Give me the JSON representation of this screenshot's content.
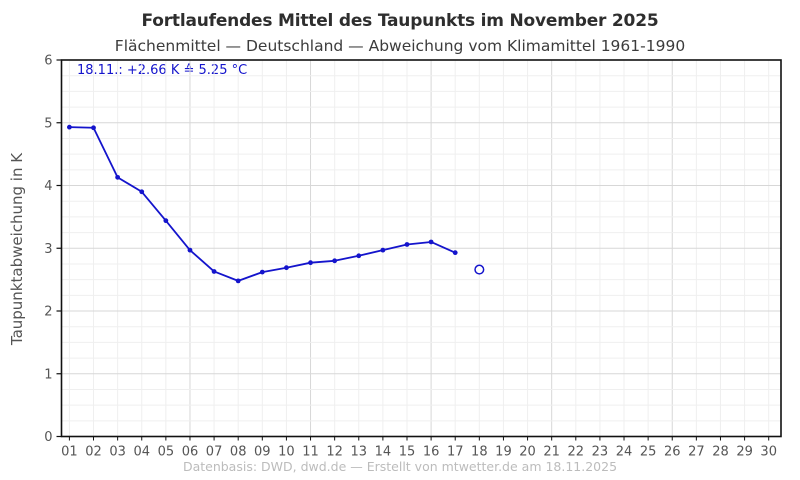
{
  "page": {
    "title": "Fortlaufendes Mittel des Taupunkts im November 2025",
    "subtitle": "Flächenmittel — Deutschland — Abweichung vom Klimamittel 1961-1990",
    "footer": "Datenbasis: DWD, dwd.de — Erstellt von mtwetter.de am 18.11.2025"
  },
  "chart_data": {
    "type": "line",
    "title": "Fortlaufendes Mittel des Taupunkts im November 2025",
    "subtitle": "Flächenmittel — Deutschland — Abweichung vom Klimamittel 1961-1990",
    "ylabel": "Taupunktabweichung in K",
    "xlabel": "",
    "annotation": "18.11.: +2.66 K ≙ 5.25 °C",
    "categories": [
      "01",
      "02",
      "03",
      "04",
      "05",
      "06",
      "07",
      "08",
      "09",
      "10",
      "11",
      "12",
      "13",
      "14",
      "15",
      "16",
      "17",
      "18",
      "19",
      "20",
      "21",
      "22",
      "23",
      "24",
      "25",
      "26",
      "27",
      "28",
      "29",
      "30"
    ],
    "ylim": [
      0,
      6
    ],
    "y_major_ticks": [
      0,
      1,
      2,
      3,
      4,
      5,
      6
    ],
    "y_minor_step": 0.25,
    "x_emphasized_days": [
      6,
      11,
      16,
      21,
      26
    ],
    "grid": true,
    "legend": "none",
    "series": [
      {
        "name": "running-mean-dewpoint-anomaly",
        "marker": "filled-dot",
        "x": [
          1,
          2,
          3,
          4,
          5,
          6,
          7,
          8,
          9,
          10,
          11,
          12,
          13,
          14,
          15,
          16,
          17
        ],
        "values": [
          4.93,
          4.92,
          4.13,
          3.9,
          3.44,
          2.97,
          2.63,
          2.48,
          2.62,
          2.69,
          2.77,
          2.8,
          2.88,
          2.97,
          3.06,
          3.1,
          2.93
        ]
      },
      {
        "name": "preliminary-latest-value",
        "marker": "open-circle",
        "x": [
          18
        ],
        "values": [
          2.66
        ]
      }
    ],
    "colors": {
      "line": "#1414cc",
      "annotation": "#1414cc",
      "grid_minor": "#efefef",
      "grid_major": "#d7d7d7",
      "axis": "#111111",
      "tick_text": "#555555",
      "title_text": "#2e2e2e",
      "subtitle_text": "#3c3c3c",
      "footer_text": "#bcbcbc"
    }
  }
}
